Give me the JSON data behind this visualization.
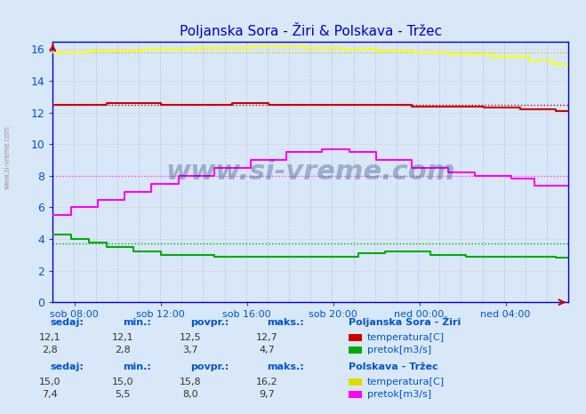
{
  "title": "Poljanska Sora - Žiri & Polskava - Tržec",
  "bg_color": "#d8e8f8",
  "ylim": [
    0,
    16.5
  ],
  "yticks": [
    0,
    2,
    4,
    6,
    8,
    10,
    12,
    14,
    16
  ],
  "text_color": "#0055cc",
  "val_color": "#333333",
  "title_color": "#0000cc",
  "n_points": 288,
  "series": {
    "ziri_temp": {
      "color": "#cc0000",
      "avg": 12.5
    },
    "ziri_pretok": {
      "color": "#00aa00",
      "avg": 3.7
    },
    "trzec_temp": {
      "color": "#cccc00",
      "avg": 15.8
    },
    "trzec_pretok": {
      "color": "#ff44ff",
      "avg": 8.0
    }
  },
  "xtick_labels": [
    "sob 08:00",
    "sob 12:00",
    "sob 16:00",
    "sob 20:00",
    "ned 00:00",
    "ned 04:00"
  ],
  "xtick_pos": [
    12,
    60,
    108,
    156,
    204,
    252
  ],
  "watermark": "www.si-vreme.com"
}
